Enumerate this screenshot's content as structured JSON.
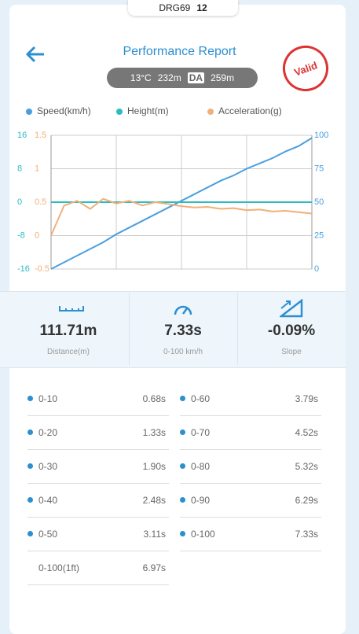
{
  "badge": {
    "device": "DRG69",
    "satellites": "12"
  },
  "header": {
    "title": "Performance Report",
    "stamp": "Valid"
  },
  "conditions": {
    "temperature": "13°C",
    "altitude": "232m",
    "da_label": "DA",
    "density_altitude": "259m"
  },
  "chart_data": {
    "type": "line",
    "categories": [
      null,
      null,
      null,
      null,
      null,
      null,
      null,
      null,
      null,
      null,
      null,
      null,
      null,
      null,
      null,
      null,
      null,
      null,
      null,
      null,
      null
    ],
    "series": [
      {
        "name": "Speed(km/h)",
        "color": "#4a9fe0",
        "axis": "y2",
        "values": [
          0,
          5,
          10,
          15,
          20,
          26,
          31,
          36,
          41,
          46,
          51,
          56,
          61,
          66,
          70,
          75,
          79,
          83,
          88,
          92,
          98
        ]
      },
      {
        "name": "Height(m)",
        "color": "#2bbbc0",
        "axis": "y",
        "values": [
          0,
          0,
          0,
          0,
          0,
          0,
          0,
          0,
          0,
          0,
          0,
          0,
          0,
          0,
          0,
          0,
          0,
          0,
          0,
          0,
          0
        ]
      },
      {
        "name": "Acceleration(g)",
        "color": "#f0b07a",
        "axis": "y3",
        "values": [
          0,
          0.45,
          0.52,
          0.4,
          0.55,
          0.48,
          0.52,
          0.45,
          0.5,
          0.47,
          0.44,
          0.42,
          0.43,
          0.4,
          0.41,
          0.38,
          0.39,
          0.36,
          0.37,
          0.35,
          0.33
        ]
      }
    ],
    "ylim": [
      -16,
      16
    ],
    "yticks": [
      -16,
      -8,
      0,
      8,
      16
    ],
    "y3lim": [
      -0.5,
      1.5
    ],
    "y3ticks": [
      -0.5,
      0,
      0.5,
      1,
      1.5
    ],
    "y2lim": [
      0,
      100
    ],
    "y2ticks": [
      0,
      25,
      50,
      75,
      100
    ],
    "grid": true
  },
  "stats": [
    {
      "value": "111.71m",
      "label": "Distance(m)"
    },
    {
      "value": "7.33s",
      "label": "0-100 km/h"
    },
    {
      "value": "-0.09%",
      "label": "Slope"
    }
  ],
  "splits": {
    "left": [
      [
        "0-10",
        "0.68s"
      ],
      [
        "0-20",
        "1.33s"
      ],
      [
        "0-30",
        "1.90s"
      ],
      [
        "0-40",
        "2.48s"
      ],
      [
        "0-50",
        "3.11s"
      ],
      [
        "0-100(1ft)",
        "6.97s"
      ]
    ],
    "right": [
      [
        "0-60",
        "3.79s"
      ],
      [
        "0-70",
        "4.52s"
      ],
      [
        "0-80",
        "5.32s"
      ],
      [
        "0-90",
        "6.29s"
      ],
      [
        "0-100",
        "7.33s"
      ]
    ]
  }
}
